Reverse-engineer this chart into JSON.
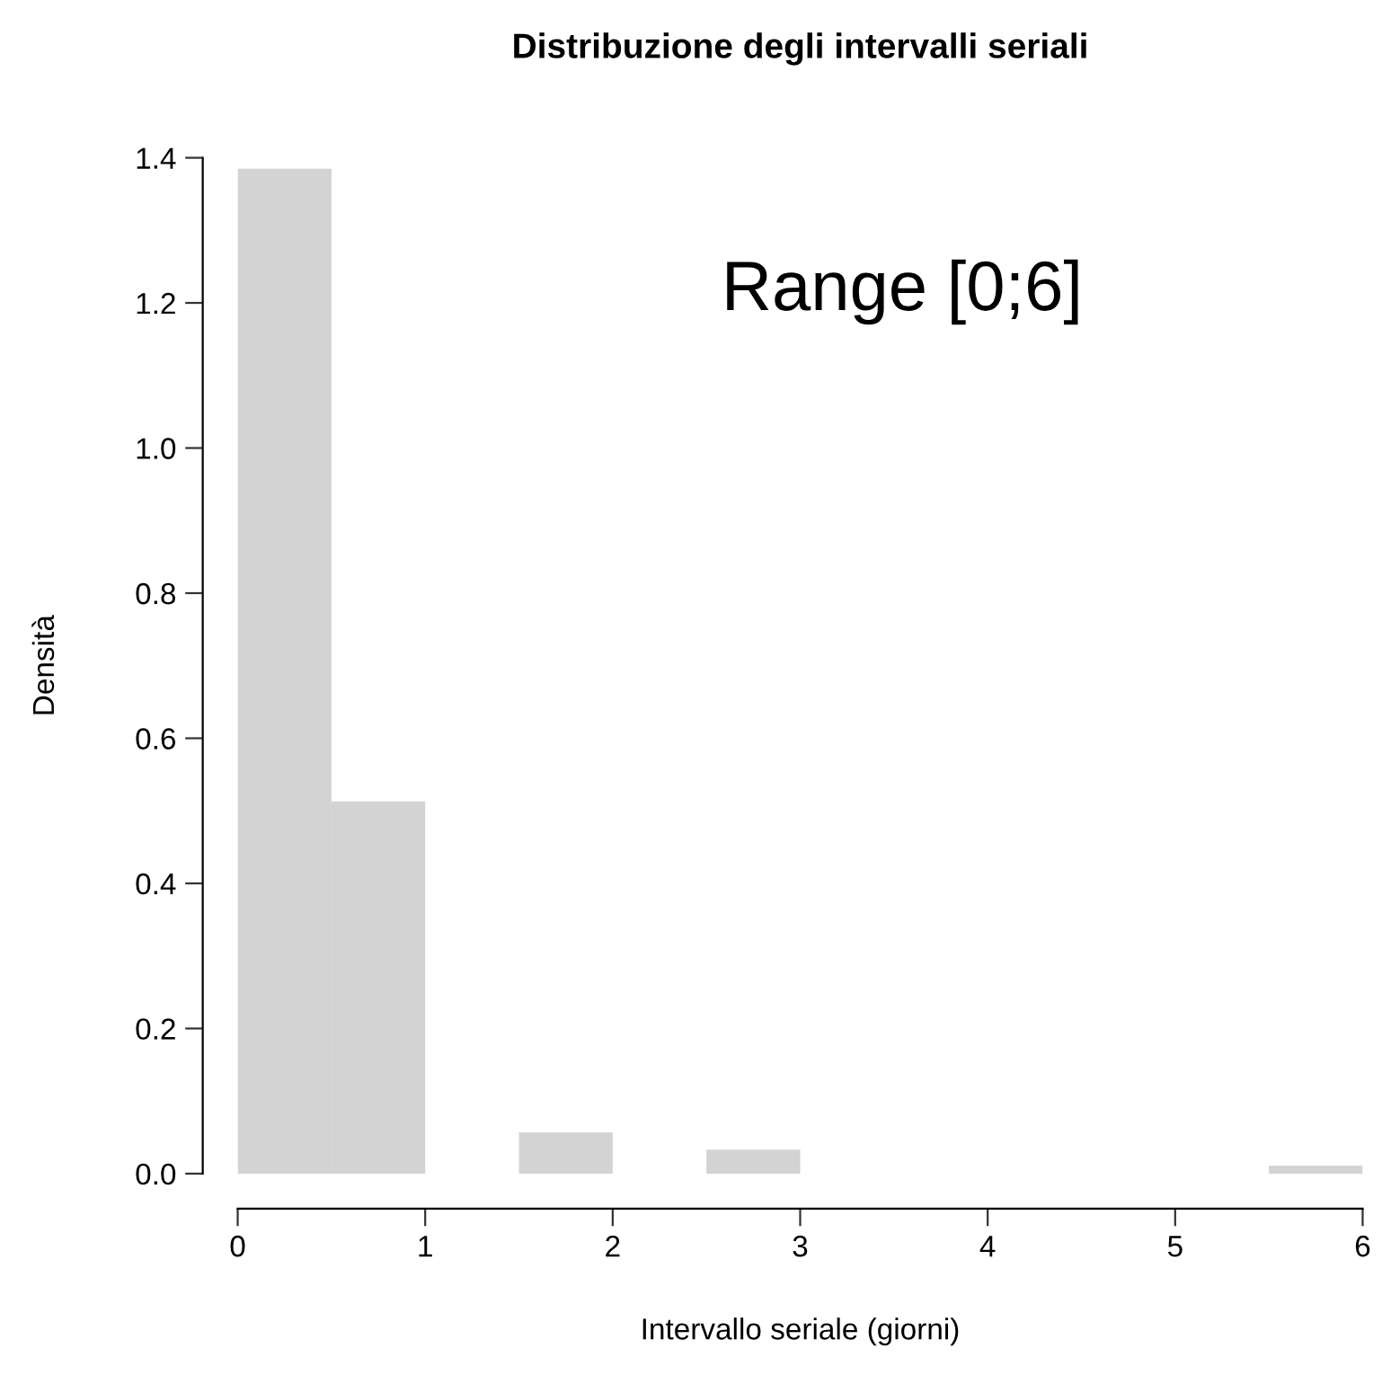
{
  "chart_data": {
    "type": "histogram",
    "title": "Distribuzione degli intervalli seriali",
    "xlabel": "Intervallo seriale (giorni)",
    "ylabel": "Densità",
    "bins": [
      0,
      0.5,
      1,
      1.5,
      2,
      2.5,
      3,
      3.5,
      4,
      4.5,
      5,
      5.5,
      6
    ],
    "values": [
      1.385,
      0.513,
      0,
      0.057,
      0,
      0.033,
      0,
      0,
      0,
      0,
      0,
      0.011
    ],
    "color": "#d3d3d3",
    "xlim": [
      0,
      6
    ],
    "xticks": [
      0,
      1,
      2,
      3,
      4,
      5,
      6
    ],
    "ylim": [
      0,
      1.4
    ],
    "yticks": [
      {
        "value": 0,
        "label": "0.0"
      },
      {
        "value": 0.2,
        "label": "0.2"
      },
      {
        "value": 0.4,
        "label": "0.4"
      },
      {
        "value": 0.6,
        "label": "0.6"
      },
      {
        "value": 0.8,
        "label": "0.8"
      },
      {
        "value": 1.0,
        "label": "1.0"
      },
      {
        "value": 1.2,
        "label": "1.2"
      },
      {
        "value": 1.4,
        "label": "1.4"
      }
    ],
    "grid": false,
    "annotations": [
      "Range [0;6]"
    ]
  }
}
